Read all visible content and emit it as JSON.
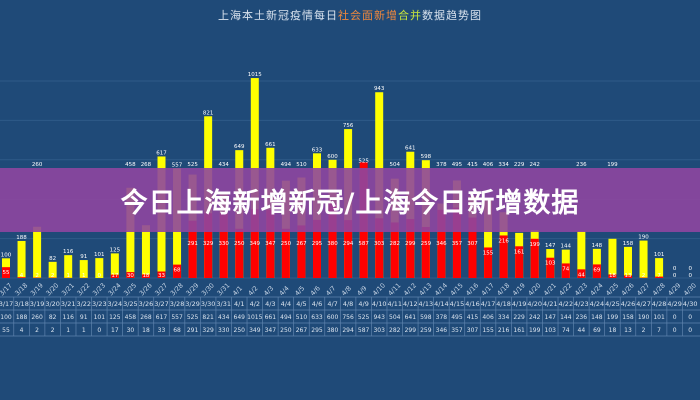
{
  "banner": {
    "text": "今日上海新增新冠/上海今日新增数据"
  },
  "chart_data": {
    "type": "bar",
    "title_parts": [
      "上海本土新冠疫情每日",
      "社会面新增",
      "合并",
      "数据趋势图"
    ],
    "categories": [
      "3/17",
      "3/18",
      "3/19",
      "3/20",
      "3/21",
      "3/22",
      "3/23",
      "3/24",
      "3/25",
      "3/26",
      "3/27",
      "3/28",
      "3/29",
      "3/30",
      "3/31",
      "4/1",
      "4/2",
      "4/3",
      "4/4",
      "4/5",
      "4/6",
      "4/7",
      "4/8",
      "4/9",
      "4/10",
      "4/11",
      "4/12",
      "4/13",
      "4/14",
      "4/15",
      "4/16",
      "4/17",
      "4/18",
      "4/19",
      "4/20",
      "4/21",
      "4/22",
      "4/23",
      "4/24",
      "4/25",
      "4/26",
      "4/27",
      "4/28",
      "4/29",
      "4/30"
    ],
    "series": [
      {
        "color": "#ffff00",
        "values": [
          100,
          188,
          260,
          82,
          116,
          91,
          101,
          125,
          458,
          268,
          617,
          557,
          525,
          821,
          434,
          649,
          1015,
          661,
          494,
          510,
          633,
          600,
          756,
          525,
          943,
          504,
          641,
          598,
          378,
          495,
          415,
          406,
          334,
          229,
          242,
          147,
          144,
          236,
          148,
          199,
          158,
          190,
          101,
          0,
          0
        ]
      },
      {
        "color": "#ff0000",
        "values": [
          55,
          4,
          2,
          2,
          1,
          1,
          0,
          17,
          30,
          18,
          33,
          68,
          291,
          329,
          330,
          250,
          349,
          347,
          250,
          267,
          295,
          380,
          294,
          587,
          303,
          282,
          299,
          259,
          346,
          357,
          307,
          155,
          216,
          161,
          199,
          103,
          74,
          44,
          69,
          18,
          13,
          2,
          7,
          0,
          0
        ]
      }
    ],
    "grid": true,
    "legend": "none",
    "table_below": true
  }
}
